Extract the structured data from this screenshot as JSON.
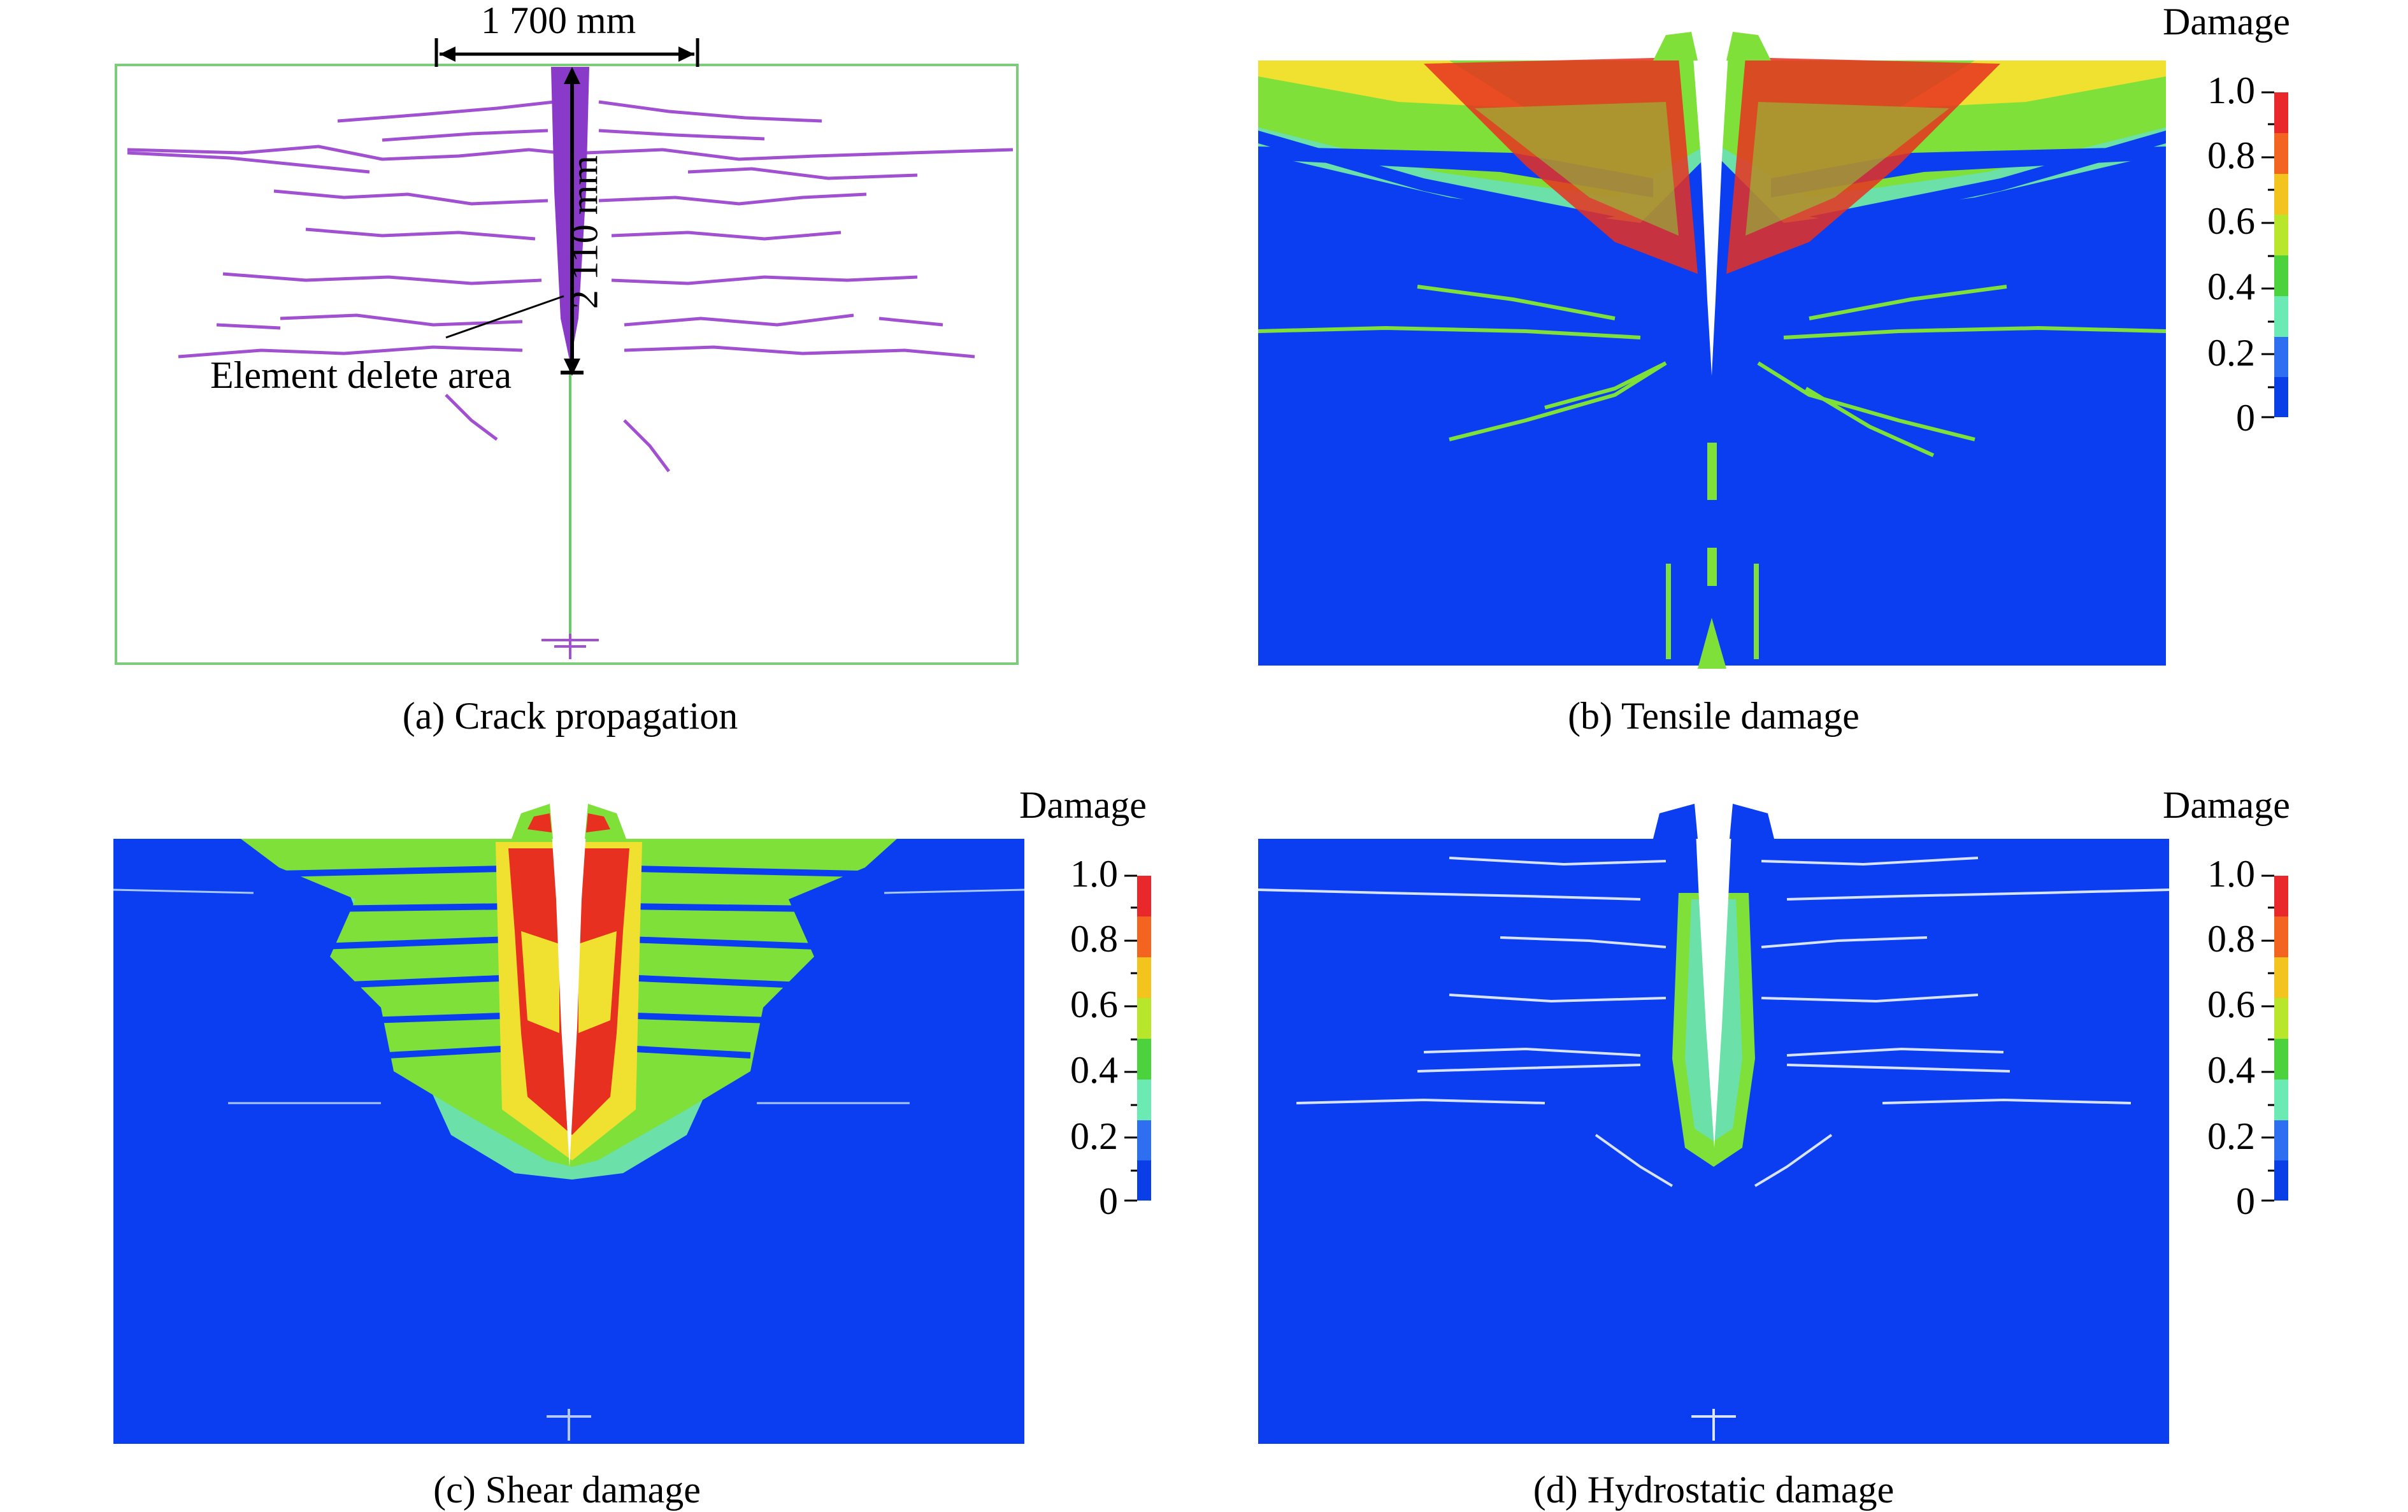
{
  "figure": {
    "panels": [
      {
        "id": "a",
        "caption": "(a) Crack propagation"
      },
      {
        "id": "b",
        "caption": "(b) Tensile damage"
      },
      {
        "id": "c",
        "caption": "(c) Shear damage"
      },
      {
        "id": "d",
        "caption": "(d) Hydrostatic damage"
      }
    ],
    "annotations": {
      "width_label": "1 700 mm",
      "depth_label": "2 110 mm",
      "element_delete_label": "Element delete area"
    },
    "colorbar": {
      "title": "Damage",
      "ticks": [
        "1.0",
        "0.8",
        "0.6",
        "0.4",
        "0.2",
        "0"
      ],
      "colors": [
        "#e8282a",
        "#f26420",
        "#f3c31e",
        "#b8e62a",
        "#4bd23c",
        "#6bebb3",
        "#2d6ff0",
        "#0a3ee6"
      ]
    },
    "colors": {
      "intact": "#0b3ef0",
      "green": "#7fe03a",
      "yellow": "#f0e030",
      "red": "#e83020",
      "cyan": "#6fe6c8",
      "crack": "#a050d0",
      "border": "#66cc66"
    }
  }
}
